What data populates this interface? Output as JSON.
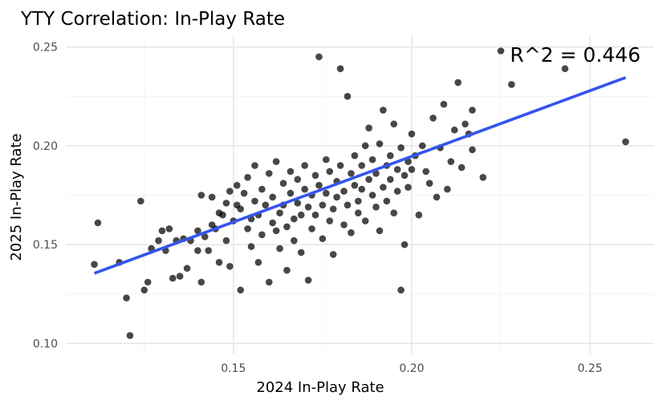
{
  "chart_data": {
    "type": "scatter",
    "title": "YTY Correlation: In-Play Rate",
    "xlabel": "2024 In-Play Rate",
    "ylabel": "2025 In-Play Rate",
    "xlim": [
      0.103,
      0.268
    ],
    "ylim": [
      0.0945,
      0.2555
    ],
    "x_ticks": [
      "0.15",
      "0.20",
      "0.25"
    ],
    "y_ticks": [
      "0.10",
      "0.15",
      "0.20",
      "0.25"
    ],
    "grid": true,
    "annotation": "R^2 = 0.446",
    "point_color": "#000000",
    "fit_line": {
      "color": "#3355ee",
      "x": [
        0.111,
        0.26
      ],
      "y": [
        0.1355,
        0.2345
      ]
    },
    "points": [
      [
        0.111,
        0.14
      ],
      [
        0.112,
        0.161
      ],
      [
        0.118,
        0.141
      ],
      [
        0.12,
        0.123
      ],
      [
        0.121,
        0.104
      ],
      [
        0.124,
        0.172
      ],
      [
        0.125,
        0.127
      ],
      [
        0.126,
        0.131
      ],
      [
        0.127,
        0.148
      ],
      [
        0.129,
        0.152
      ],
      [
        0.13,
        0.157
      ],
      [
        0.131,
        0.147
      ],
      [
        0.132,
        0.158
      ],
      [
        0.133,
        0.133
      ],
      [
        0.134,
        0.152
      ],
      [
        0.135,
        0.134
      ],
      [
        0.136,
        0.153
      ],
      [
        0.137,
        0.138
      ],
      [
        0.138,
        0.152
      ],
      [
        0.14,
        0.157
      ],
      [
        0.14,
        0.147
      ],
      [
        0.141,
        0.131
      ],
      [
        0.141,
        0.175
      ],
      [
        0.142,
        0.154
      ],
      [
        0.143,
        0.147
      ],
      [
        0.144,
        0.16
      ],
      [
        0.144,
        0.174
      ],
      [
        0.145,
        0.158
      ],
      [
        0.146,
        0.166
      ],
      [
        0.146,
        0.141
      ],
      [
        0.147,
        0.165
      ],
      [
        0.148,
        0.171
      ],
      [
        0.148,
        0.152
      ],
      [
        0.149,
        0.139
      ],
      [
        0.149,
        0.177
      ],
      [
        0.15,
        0.162
      ],
      [
        0.151,
        0.17
      ],
      [
        0.151,
        0.18
      ],
      [
        0.152,
        0.127
      ],
      [
        0.152,
        0.168
      ],
      [
        0.153,
        0.176
      ],
      [
        0.154,
        0.158
      ],
      [
        0.154,
        0.184
      ],
      [
        0.155,
        0.163
      ],
      [
        0.155,
        0.149
      ],
      [
        0.156,
        0.19
      ],
      [
        0.156,
        0.172
      ],
      [
        0.157,
        0.165
      ],
      [
        0.157,
        0.141
      ],
      [
        0.158,
        0.178
      ],
      [
        0.158,
        0.155
      ],
      [
        0.159,
        0.17
      ],
      [
        0.16,
        0.186
      ],
      [
        0.16,
        0.131
      ],
      [
        0.161,
        0.161
      ],
      [
        0.161,
        0.174
      ],
      [
        0.162,
        0.157
      ],
      [
        0.162,
        0.192
      ],
      [
        0.163,
        0.166
      ],
      [
        0.163,
        0.148
      ],
      [
        0.164,
        0.181
      ],
      [
        0.164,
        0.17
      ],
      [
        0.165,
        0.159
      ],
      [
        0.165,
        0.137
      ],
      [
        0.166,
        0.176
      ],
      [
        0.166,
        0.187
      ],
      [
        0.167,
        0.163
      ],
      [
        0.167,
        0.152
      ],
      [
        0.168,
        0.183
      ],
      [
        0.168,
        0.171
      ],
      [
        0.169,
        0.165
      ],
      [
        0.169,
        0.146
      ],
      [
        0.17,
        0.178
      ],
      [
        0.17,
        0.19
      ],
      [
        0.171,
        0.169
      ],
      [
        0.171,
        0.132
      ],
      [
        0.172,
        0.175
      ],
      [
        0.172,
        0.158
      ],
      [
        0.173,
        0.185
      ],
      [
        0.173,
        0.165
      ],
      [
        0.174,
        0.245
      ],
      [
        0.174,
        0.18
      ],
      [
        0.175,
        0.17
      ],
      [
        0.175,
        0.153
      ],
      [
        0.176,
        0.193
      ],
      [
        0.176,
        0.176
      ],
      [
        0.177,
        0.162
      ],
      [
        0.177,
        0.187
      ],
      [
        0.178,
        0.168
      ],
      [
        0.178,
        0.145
      ],
      [
        0.179,
        0.182
      ],
      [
        0.179,
        0.174
      ],
      [
        0.18,
        0.239
      ],
      [
        0.18,
        0.19
      ],
      [
        0.181,
        0.16
      ],
      [
        0.181,
        0.177
      ],
      [
        0.182,
        0.225
      ],
      [
        0.182,
        0.17
      ],
      [
        0.183,
        0.186
      ],
      [
        0.183,
        0.156
      ],
      [
        0.184,
        0.18
      ],
      [
        0.184,
        0.195
      ],
      [
        0.185,
        0.172
      ],
      [
        0.185,
        0.166
      ],
      [
        0.186,
        0.19
      ],
      [
        0.186,
        0.178
      ],
      [
        0.187,
        0.2
      ],
      [
        0.187,
        0.162
      ],
      [
        0.188,
        0.183
      ],
      [
        0.188,
        0.209
      ],
      [
        0.189,
        0.175
      ],
      [
        0.189,
        0.193
      ],
      [
        0.19,
        0.169
      ],
      [
        0.19,
        0.186
      ],
      [
        0.191,
        0.201
      ],
      [
        0.191,
        0.157
      ],
      [
        0.192,
        0.179
      ],
      [
        0.192,
        0.218
      ],
      [
        0.193,
        0.19
      ],
      [
        0.193,
        0.172
      ],
      [
        0.194,
        0.195
      ],
      [
        0.194,
        0.183
      ],
      [
        0.195,
        0.166
      ],
      [
        0.195,
        0.211
      ],
      [
        0.196,
        0.188
      ],
      [
        0.196,
        0.177
      ],
      [
        0.197,
        0.127
      ],
      [
        0.197,
        0.199
      ],
      [
        0.198,
        0.15
      ],
      [
        0.198,
        0.185
      ],
      [
        0.199,
        0.192
      ],
      [
        0.199,
        0.179
      ],
      [
        0.2,
        0.206
      ],
      [
        0.2,
        0.188
      ],
      [
        0.201,
        0.195
      ],
      [
        0.202,
        0.165
      ],
      [
        0.203,
        0.2
      ],
      [
        0.204,
        0.187
      ],
      [
        0.205,
        0.181
      ],
      [
        0.206,
        0.214
      ],
      [
        0.207,
        0.174
      ],
      [
        0.208,
        0.199
      ],
      [
        0.209,
        0.221
      ],
      [
        0.21,
        0.178
      ],
      [
        0.211,
        0.192
      ],
      [
        0.212,
        0.208
      ],
      [
        0.213,
        0.232
      ],
      [
        0.214,
        0.189
      ],
      [
        0.215,
        0.211
      ],
      [
        0.216,
        0.206
      ],
      [
        0.217,
        0.218
      ],
      [
        0.217,
        0.198
      ],
      [
        0.22,
        0.184
      ],
      [
        0.225,
        0.248
      ],
      [
        0.228,
        0.231
      ],
      [
        0.243,
        0.239
      ],
      [
        0.26,
        0.202
      ]
    ]
  }
}
